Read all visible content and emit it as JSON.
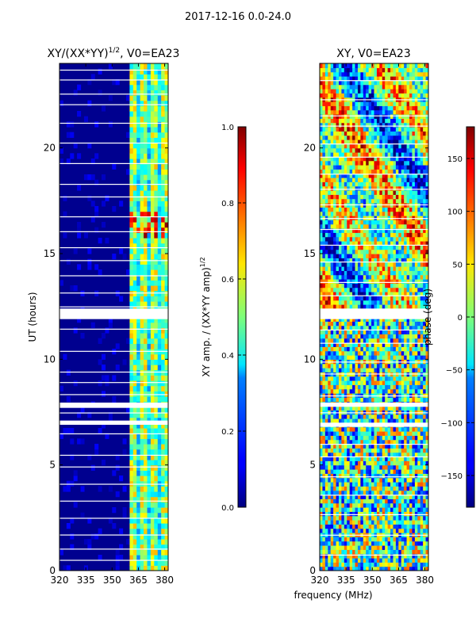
{
  "figure": {
    "suptitle": "2017-12-16 0.0-24.0",
    "xlabel": "frequency (MHz)",
    "ylabel": "UT (hours)"
  },
  "chart_data": [
    {
      "type": "heatmap",
      "title_prefix": "XY/(XX*YY)",
      "title_exp": "1/2",
      "title_suffix": ", V0=EA23",
      "xlabel": "",
      "ylabel": "UT (hours)",
      "xlim": [
        320,
        382
      ],
      "ylim": [
        0,
        24
      ],
      "xticks": [
        320,
        335,
        350,
        365,
        380
      ],
      "yticks": [
        0,
        5,
        10,
        15,
        20
      ],
      "value_range": [
        0.0,
        1.0
      ],
      "bright_frequency_band_mhz": [
        360,
        380
      ],
      "gap_hours": [
        [
          11.9,
          12.4
        ],
        [
          7.7,
          7.95
        ],
        [
          6.9,
          7.1
        ]
      ],
      "colorbar": {
        "label_main": "XY amp. / (XX*YY amp)",
        "label_exp": "1/2",
        "ticks": [
          "0.0",
          "0.2",
          "0.4",
          "0.6",
          "0.8",
          "1.0"
        ],
        "tick_values": [
          0.0,
          0.2,
          0.4,
          0.6,
          0.8,
          1.0
        ],
        "range": [
          0.0,
          1.0
        ]
      }
    },
    {
      "type": "heatmap",
      "title": "XY, V0=EA23",
      "xlabel": "frequency (MHz)",
      "ylabel": "",
      "xlim": [
        320,
        382
      ],
      "ylim": [
        0,
        24
      ],
      "xticks": [
        320,
        335,
        350,
        365,
        380
      ],
      "yticks": [
        0,
        5,
        10,
        15,
        20
      ],
      "value_range": [
        -180,
        180
      ],
      "gap_hours": [
        [
          11.9,
          12.4
        ],
        [
          7.75,
          7.95
        ],
        [
          6.8,
          7.0
        ]
      ],
      "colorbar": {
        "label": "phase (deg)",
        "ticks": [
          "150",
          "100",
          "50",
          "0",
          "−50",
          "−100",
          "−150"
        ],
        "tick_values": [
          150,
          100,
          50,
          0,
          -50,
          -100,
          -150
        ],
        "range": [
          -180,
          180
        ]
      }
    }
  ]
}
